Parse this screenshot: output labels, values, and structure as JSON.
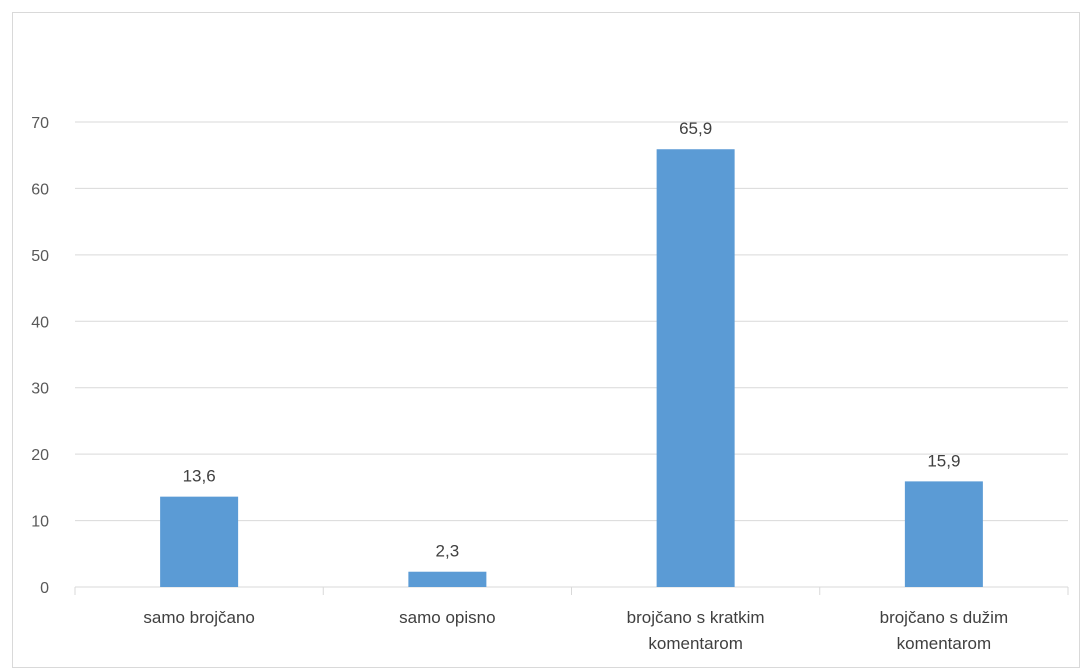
{
  "chart_data": {
    "type": "bar",
    "categories": [
      "samo brojčano",
      "samo opisno",
      "brojčano s kratkim komentarom",
      "brojčano s dužim komentarom"
    ],
    "category_lines": [
      [
        "samo brojčano"
      ],
      [
        "samo opisno"
      ],
      [
        "brojčano s kratkim",
        "komentarom"
      ],
      [
        "brojčano s dužim",
        "komentarom"
      ]
    ],
    "values": [
      13.6,
      2.3,
      65.9,
      15.9
    ],
    "data_labels": [
      "13,6",
      "2,3",
      "65,9",
      "15,9"
    ],
    "ylim": [
      0,
      70
    ],
    "yticks": [
      0,
      10,
      20,
      30,
      40,
      50,
      60,
      70
    ],
    "title": "",
    "xlabel": "",
    "ylabel": "",
    "grid": true,
    "legend": "none",
    "bar_color": "#5b9bd5",
    "grid_color": "#d9d9d9"
  }
}
